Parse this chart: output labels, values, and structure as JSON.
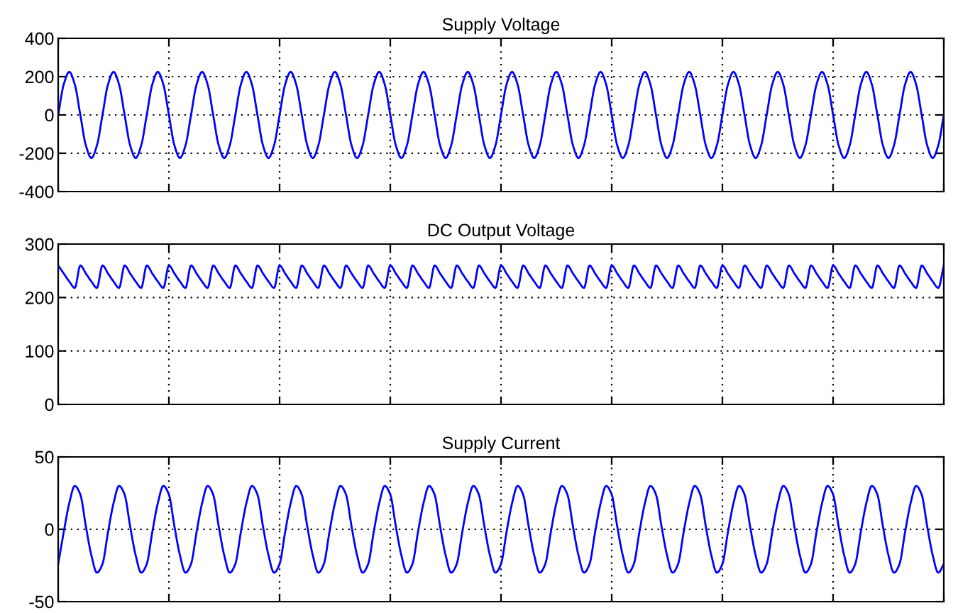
{
  "chart_data": [
    {
      "type": "line",
      "title": "Supply Voltage",
      "tick_labels": "y",
      "grid": true,
      "ylim": [
        -400,
        400
      ],
      "yticks": [
        -400,
        -200,
        0,
        200,
        400
      ],
      "categories": [
        null,
        null,
        null,
        null,
        null,
        null,
        null,
        null,
        null,
        null,
        null,
        null,
        null,
        null,
        null,
        null,
        null,
        null,
        null,
        null,
        null,
        null,
        null,
        null,
        null,
        null,
        null,
        null,
        null,
        null,
        null,
        null,
        null,
        null,
        null,
        null,
        null,
        null,
        null,
        null,
        null,
        null,
        null,
        null,
        null,
        null,
        null,
        null,
        null,
        null,
        null,
        null,
        null,
        null,
        null,
        null,
        null,
        null,
        null,
        null,
        null,
        null,
        null,
        null,
        null,
        null,
        null,
        null,
        null,
        null,
        null,
        null,
        null,
        null,
        null,
        null,
        null,
        null,
        null,
        null,
        null,
        null,
        null,
        null,
        null,
        null,
        null,
        null,
        null,
        null,
        null,
        null,
        null,
        null,
        null,
        null,
        null,
        null,
        null,
        null,
        null,
        null,
        null,
        null,
        null,
        null,
        null,
        null,
        null,
        null,
        null,
        null,
        null,
        null,
        null,
        null,
        null,
        null,
        null,
        null,
        null,
        null,
        null,
        null,
        null,
        null,
        null,
        null,
        null,
        null,
        null,
        null,
        null,
        null,
        null,
        null,
        null,
        null,
        null,
        null,
        null,
        null,
        null,
        null,
        null,
        null,
        null,
        null,
        null,
        null,
        null,
        null,
        null,
        null,
        null,
        null,
        null,
        null,
        null,
        null,
        null
      ],
      "series": [
        {
          "color": "#0000ff",
          "values": [
            0,
            159,
            225,
            159,
            0,
            -159,
            -225,
            -159,
            0,
            159,
            225,
            159,
            0,
            -159,
            -225,
            -159,
            0,
            159,
            225,
            159,
            0,
            -159,
            -225,
            -159,
            0,
            159,
            225,
            159,
            0,
            -159,
            -225,
            -159,
            0,
            159,
            225,
            159,
            0,
            -159,
            -225,
            -159,
            0,
            159,
            225,
            159,
            0,
            -159,
            -225,
            -159,
            0,
            159,
            225,
            159,
            0,
            -159,
            -225,
            -159,
            0,
            159,
            225,
            159,
            0,
            -159,
            -225,
            -159,
            0,
            159,
            225,
            159,
            0,
            -159,
            -225,
            -159,
            0,
            159,
            225,
            159,
            0,
            -159,
            -225,
            -159,
            0,
            159,
            225,
            159,
            0,
            -159,
            -225,
            -159,
            0,
            159,
            225,
            159,
            0,
            -159,
            -225,
            -159,
            0,
            159,
            225,
            159,
            0,
            -159,
            -225,
            -159,
            0,
            159,
            225,
            159,
            0,
            -159,
            -225,
            -159,
            0,
            159,
            225,
            159,
            0,
            -159,
            -225,
            -159,
            0,
            159,
            225,
            159,
            0,
            -159,
            -225,
            -159,
            0,
            159,
            225,
            159,
            0,
            -159,
            -225,
            -159,
            0,
            159,
            225,
            159,
            0,
            -159,
            -225,
            -159,
            0,
            159,
            225,
            159,
            0,
            -159,
            -225,
            -159,
            0,
            159,
            225,
            159,
            0,
            -159,
            -225,
            -159,
            0
          ]
        }
      ]
    },
    {
      "type": "line",
      "title": "DC Output Voltage",
      "tick_labels": "y",
      "grid": true,
      "ylim": [
        0,
        300
      ],
      "yticks": [
        0,
        100,
        200,
        300
      ],
      "categories": [
        null,
        null,
        null,
        null,
        null,
        null,
        null,
        null,
        null,
        null,
        null,
        null,
        null,
        null,
        null,
        null,
        null,
        null,
        null,
        null,
        null,
        null,
        null,
        null,
        null,
        null,
        null,
        null,
        null,
        null,
        null,
        null,
        null,
        null,
        null,
        null,
        null,
        null,
        null,
        null,
        null,
        null,
        null,
        null,
        null,
        null,
        null,
        null,
        null,
        null,
        null,
        null,
        null,
        null,
        null,
        null,
        null,
        null,
        null,
        null,
        null,
        null,
        null,
        null,
        null,
        null,
        null,
        null,
        null,
        null,
        null,
        null,
        null,
        null,
        null,
        null,
        null,
        null,
        null,
        null,
        null,
        null,
        null,
        null,
        null,
        null,
        null,
        null,
        null,
        null,
        null,
        null,
        null,
        null,
        null,
        null,
        null,
        null,
        null,
        null,
        null,
        null,
        null,
        null,
        null,
        null,
        null,
        null,
        null,
        null,
        null,
        null,
        null,
        null,
        null,
        null,
        null,
        null,
        null,
        null,
        null,
        null,
        null,
        null,
        null,
        null,
        null,
        null,
        null,
        null,
        null,
        null,
        null,
        null,
        null,
        null,
        null,
        null,
        null,
        null,
        null,
        null,
        null,
        null,
        null,
        null,
        null,
        null,
        null,
        null,
        null,
        null,
        null,
        null,
        null,
        null,
        null,
        null,
        null,
        null,
        null
      ],
      "series": [
        {
          "color": "#0000ff",
          "values": [
            260,
            245,
            230,
            218,
            260,
            245,
            230,
            218,
            260,
            245,
            230,
            218,
            260,
            245,
            230,
            218,
            260,
            245,
            230,
            218,
            260,
            245,
            230,
            218,
            260,
            245,
            230,
            218,
            260,
            245,
            230,
            218,
            260,
            245,
            230,
            218,
            260,
            245,
            230,
            218,
            260,
            245,
            230,
            218,
            260,
            245,
            230,
            218,
            260,
            245,
            230,
            218,
            260,
            245,
            230,
            218,
            260,
            245,
            230,
            218,
            260,
            245,
            230,
            218,
            260,
            245,
            230,
            218,
            260,
            245,
            230,
            218,
            260,
            245,
            230,
            218,
            260,
            245,
            230,
            218,
            260,
            245,
            230,
            218,
            260,
            245,
            230,
            218,
            260,
            245,
            230,
            218,
            260,
            245,
            230,
            218,
            260,
            245,
            230,
            218,
            260,
            245,
            230,
            218,
            260,
            245,
            230,
            218,
            260,
            245,
            230,
            218,
            260,
            245,
            230,
            218,
            260,
            245,
            230,
            218,
            260,
            245,
            230,
            218,
            260,
            245,
            230,
            218,
            260,
            245,
            230,
            218,
            260,
            245,
            230,
            218,
            260,
            245,
            230,
            218,
            260,
            245,
            230,
            218,
            260,
            245,
            230,
            218,
            260,
            245,
            230,
            218,
            260,
            245,
            230,
            218,
            260,
            245,
            230,
            218,
            260
          ]
        }
      ]
    },
    {
      "type": "line",
      "title": "Supply Current",
      "tick_labels": "y",
      "grid": true,
      "ylim": [
        -50,
        50
      ],
      "yticks": [
        -50,
        0,
        50
      ],
      "categories": [
        null,
        null,
        null,
        null,
        null,
        null,
        null,
        null,
        null,
        null,
        null,
        null,
        null,
        null,
        null,
        null,
        null,
        null,
        null,
        null,
        null,
        null,
        null,
        null,
        null,
        null,
        null,
        null,
        null,
        null,
        null,
        null,
        null,
        null,
        null,
        null,
        null,
        null,
        null,
        null,
        null,
        null,
        null,
        null,
        null,
        null,
        null,
        null,
        null,
        null,
        null,
        null,
        null,
        null,
        null,
        null,
        null,
        null,
        null,
        null,
        null,
        null,
        null,
        null,
        null,
        null,
        null,
        null,
        null,
        null,
        null,
        null,
        null,
        null,
        null,
        null,
        null,
        null,
        null,
        null,
        null,
        null,
        null,
        null,
        null,
        null,
        null,
        null,
        null,
        null,
        null,
        null,
        null,
        null,
        null,
        null,
        null,
        null,
        null,
        null,
        null,
        null,
        null,
        null,
        null,
        null,
        null,
        null,
        null,
        null,
        null,
        null,
        null,
        null,
        null,
        null,
        null,
        null,
        null,
        null,
        null,
        null,
        null,
        null,
        null,
        null,
        null,
        null,
        null,
        null,
        null,
        null,
        null,
        null,
        null,
        null,
        null,
        null,
        null,
        null,
        null,
        null,
        null,
        null,
        null,
        null,
        null,
        null,
        null,
        null,
        null,
        null,
        null,
        null,
        null,
        null,
        null,
        null,
        null,
        null,
        null
      ],
      "series": [
        {
          "color": "#0000ff",
          "values": [
            -24,
            -2,
            18,
            30,
            24,
            2,
            -18,
            -30,
            -24,
            -2,
            18,
            30,
            24,
            2,
            -18,
            -30,
            -24,
            -2,
            18,
            30,
            24,
            2,
            -18,
            -30,
            -24,
            -2,
            18,
            30,
            24,
            2,
            -18,
            -30,
            -24,
            -2,
            18,
            30,
            24,
            2,
            -18,
            -30,
            -24,
            -2,
            18,
            30,
            24,
            2,
            -18,
            -30,
            -24,
            -2,
            18,
            30,
            24,
            2,
            -18,
            -30,
            -24,
            -2,
            18,
            30,
            24,
            2,
            -18,
            -30,
            -24,
            -2,
            18,
            30,
            24,
            2,
            -18,
            -30,
            -24,
            -2,
            18,
            30,
            24,
            2,
            -18,
            -30,
            -24,
            -2,
            18,
            30,
            24,
            2,
            -18,
            -30,
            -24,
            -2,
            18,
            30,
            24,
            2,
            -18,
            -30,
            -24,
            -2,
            18,
            30,
            24,
            2,
            -18,
            -30,
            -24,
            -2,
            18,
            30,
            24,
            2,
            -18,
            -30,
            -24,
            -2,
            18,
            30,
            24,
            2,
            -18,
            -30,
            -24,
            -2,
            18,
            30,
            24,
            2,
            -18,
            -30,
            -24,
            -2,
            18,
            30,
            24,
            2,
            -18,
            -30,
            -24,
            -2,
            18,
            30,
            24,
            2,
            -18,
            -30,
            -24,
            -2,
            18,
            30,
            24,
            2,
            -18,
            -30,
            -24,
            -2,
            18,
            30,
            24,
            2,
            -18,
            -30,
            -24
          ]
        }
      ]
    }
  ]
}
